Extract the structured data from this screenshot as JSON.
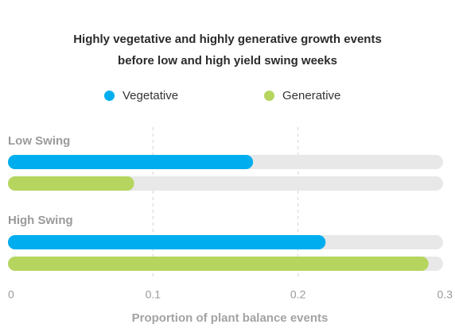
{
  "chart_data": {
    "type": "bar",
    "orientation": "horizontal",
    "title_lines": [
      "Highly vegetative and highly generative growth events",
      "before low and high yield swing weeks"
    ],
    "categories": [
      "Low Swing",
      "High Swing"
    ],
    "series": [
      {
        "name": "Vegetative",
        "values": [
          0.169,
          0.219
        ],
        "color": "#00aeef"
      },
      {
        "name": "Generative",
        "values": [
          0.087,
          0.29
        ],
        "color": "#b5d55e"
      }
    ],
    "xlabel": "Proportion of plant balance events",
    "xlim": [
      0,
      0.3
    ],
    "xticks": [
      "0",
      "0.1",
      "0.2",
      "0.3"
    ],
    "grid": "vertical dashed",
    "legend_position": "top-center",
    "track_color": "#e8e8e8"
  }
}
